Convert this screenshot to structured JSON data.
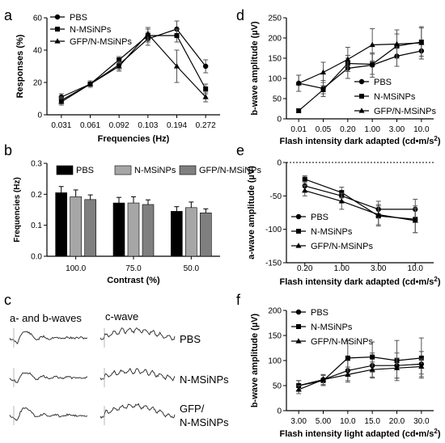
{
  "panels": [
    {
      "letter": "a",
      "chart_data": {
        "type": "line",
        "categories": [
          "0.031",
          "0.061",
          "0.092",
          "0.103",
          "0.194",
          "0.272"
        ],
        "ylim": [
          0,
          60
        ],
        "yticks": [
          "0",
          "20",
          "40",
          "60"
        ],
        "xlabel": "Frequencies (Hz)",
        "ylabel": "Responses (%)",
        "legend": "top-left",
        "series": [
          {
            "name": "PBS",
            "marker": "circle",
            "values": [
              11,
              19,
              31,
              47,
              53,
              30
            ],
            "err": [
              2,
              2,
              3,
              4,
              5,
              4
            ]
          },
          {
            "name": "N-MSiNPs",
            "marker": "square",
            "values": [
              9,
              19,
              34,
              49,
              49,
              16
            ],
            "err": [
              2,
              2,
              2,
              4,
              4,
              3
            ]
          },
          {
            "name": "GFP/N-MSiNPs",
            "marker": "triangle",
            "values": [
              8,
              19,
              30,
              50,
              30,
              11
            ],
            "err": [
              2,
              2,
              3,
              4,
              10,
              3
            ]
          }
        ]
      }
    },
    {
      "letter": "b",
      "chart_data": {
        "type": "bar",
        "categories": [
          "100.0",
          "75.0",
          "50.0"
        ],
        "ylim": [
          0,
          0.3
        ],
        "yticks": [
          "0.0",
          "0.1",
          "0.2",
          "0.3"
        ],
        "xlabel": "Contrast (%)",
        "ylabel": "Frequencies (Hz)",
        "legend": "top",
        "series": [
          {
            "name": "PBS",
            "color": "#000000",
            "values": [
              0.205,
              0.172,
              0.145
            ],
            "err": [
              0.02,
              0.018,
              0.015
            ]
          },
          {
            "name": "N-MSiNPs",
            "color": "#a6a6a6",
            "values": [
              0.192,
              0.172,
              0.157
            ],
            "err": [
              0.022,
              0.02,
              0.018
            ]
          },
          {
            "name": "GFP/N-MSiNPs",
            "color": "#7f7f7f",
            "values": [
              0.183,
              0.167,
              0.14
            ],
            "err": [
              0.015,
              0.015,
              0.013
            ]
          }
        ]
      }
    },
    {
      "letter": "c",
      "col_left": "a- and b-waves",
      "col_right": "c-wave",
      "rows": [
        "PBS",
        "N-MSiNPs",
        "GFP/",
        "N-MSiNPs"
      ]
    },
    {
      "letter": "d",
      "chart_data": {
        "type": "line",
        "categories": [
          "0.01",
          "0.05",
          "0.20",
          "1.00",
          "3.00",
          "10.0"
        ],
        "ylim": [
          0,
          250
        ],
        "yticks": [
          "0",
          "50",
          "100",
          "150",
          "200",
          "250"
        ],
        "xlabel": "Flash intensity dark adapted (cd•m/s",
        "xlabel_sup": "2",
        "xlabel_end": ")",
        "ylabel": "b-wave amplitude (µV)",
        "legend": "right",
        "series": [
          {
            "name": "PBS",
            "marker": "circle",
            "values": [
              88,
              75,
              125,
              133,
              155,
              168
            ],
            "err": [
              20,
              20,
              25,
              30,
              25,
              20
            ]
          },
          {
            "name": "N-MSiNPs",
            "marker": "square",
            "values": [
              20,
              72,
              137,
              135,
              180,
              190
            ],
            "err": [
              5,
              10,
              20,
              25,
              30,
              35
            ]
          },
          {
            "name": "GFP/N-MSiNPs",
            "marker": "triangle",
            "values": [
              88,
              115,
              147,
              183,
              185,
              188
            ],
            "err": [
              20,
              25,
              30,
              40,
              35,
              40
            ]
          }
        ]
      }
    },
    {
      "letter": "e",
      "chart_data": {
        "type": "line",
        "categories": [
          "0.20",
          "1.00",
          "3.00",
          "10.0"
        ],
        "ylim": [
          -150,
          0
        ],
        "yticks": [
          "0",
          "-50",
          "-100",
          "-150"
        ],
        "xlabel": "Flash intensity dark adapted (cd•m/s",
        "xlabel_sup": "2",
        "xlabel_end": ")",
        "ylabel": "a-wave amplitude (µV)",
        "legend": "left",
        "series": [
          {
            "name": "PBS",
            "marker": "circle",
            "values": [
              -35,
              -50,
              -70,
              -70
            ],
            "err": [
              8,
              8,
              12,
              15
            ]
          },
          {
            "name": "N-MSiNPs",
            "marker": "square",
            "values": [
              -25,
              -45,
              -80,
              -85
            ],
            "err": [
              5,
              8,
              15,
              20
            ]
          },
          {
            "name": "GFP/N-MSiNPs",
            "marker": "triangle",
            "values": [
              -42,
              -58,
              -78,
              -87
            ],
            "err": [
              8,
              12,
              15,
              18
            ]
          }
        ]
      }
    },
    {
      "letter": "f",
      "chart_data": {
        "type": "line",
        "categories": [
          "3.00",
          "5.00",
          "10.0",
          "15.0",
          "20.0",
          "30.0"
        ],
        "ylim": [
          0,
          200
        ],
        "yticks": [
          "0",
          "50",
          "100",
          "150",
          "200"
        ],
        "xlabel": "Flash intensity light adapted (cd•m/s",
        "xlabel_sup": "2",
        "xlabel_end": ")",
        "ylabel": "b-wave amplitude (µV)",
        "legend": "top-left",
        "series": [
          {
            "name": "PBS",
            "marker": "circle",
            "values": [
              50,
              62,
              80,
              90,
              90,
              93
            ],
            "err": [
              10,
              10,
              20,
              25,
              25,
              25
            ]
          },
          {
            "name": "N-MSiNPs",
            "marker": "square",
            "values": [
              50,
              60,
              105,
              107,
              100,
              105
            ],
            "err": [
              10,
              10,
              35,
              30,
              40,
              40
            ]
          },
          {
            "name": "GFP/N-MSiNPs",
            "marker": "triangle",
            "values": [
              42,
              62,
              72,
              82,
              85,
              88
            ],
            "err": [
              8,
              10,
              15,
              15,
              20,
              15
            ]
          }
        ]
      }
    }
  ]
}
